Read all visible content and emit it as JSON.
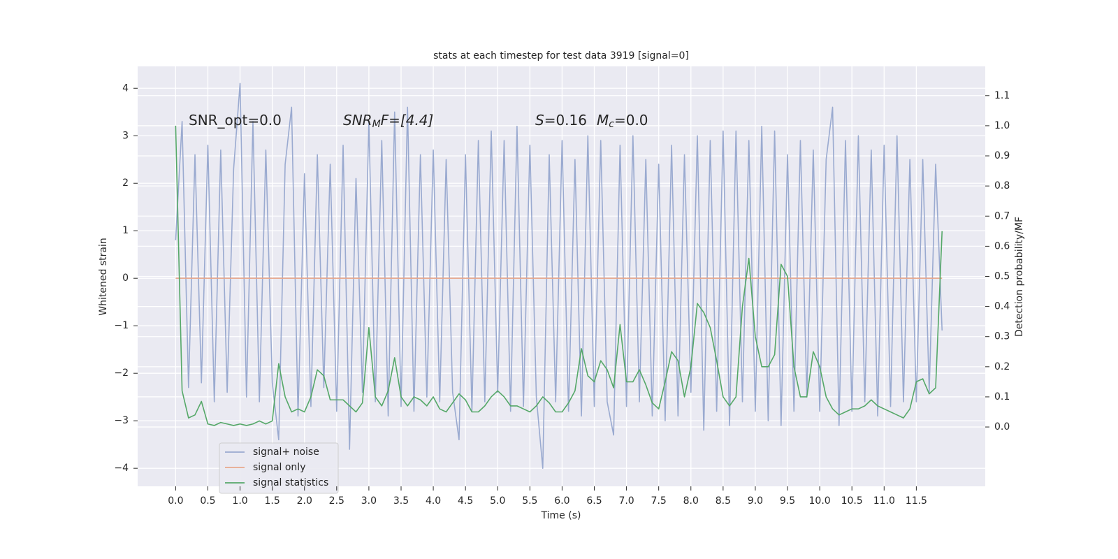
{
  "chart_data": {
    "type": "line",
    "title": "stats at each timestep for test data 3919 [signal=0]",
    "xlabel": "Time (s)",
    "ylabel": "Whitened strain",
    "y2label": "Detection probability/MF",
    "annotations": [
      [
        "SNR_opt=0.0"
      ],
      [
        "SNR",
        "M",
        "F=[4.4]"
      ],
      [
        "S",
        "=0.16",
        "M",
        "c",
        "=0.0"
      ]
    ],
    "x": [
      0.0,
      0.1,
      0.2,
      0.3,
      0.4,
      0.5,
      0.6,
      0.7,
      0.8,
      0.9,
      1.0,
      1.1,
      1.2,
      1.3,
      1.4,
      1.5,
      1.6,
      1.7,
      1.8,
      1.9,
      2.0,
      2.1,
      2.2,
      2.3,
      2.4,
      2.5,
      2.6,
      2.7,
      2.8,
      2.9,
      3.0,
      3.1,
      3.2,
      3.3,
      3.4,
      3.5,
      3.6,
      3.7,
      3.8,
      3.9,
      4.0,
      4.1,
      4.2,
      4.3,
      4.4,
      4.5,
      4.6,
      4.7,
      4.8,
      4.9,
      5.0,
      5.1,
      5.2,
      5.3,
      5.4,
      5.5,
      5.6,
      5.7,
      5.8,
      5.9,
      6.0,
      6.1,
      6.2,
      6.3,
      6.4,
      6.5,
      6.6,
      6.7,
      6.8,
      6.9,
      7.0,
      7.1,
      7.2,
      7.3,
      7.4,
      7.5,
      7.6,
      7.7,
      7.8,
      7.9,
      8.0,
      8.1,
      8.2,
      8.3,
      8.4,
      8.5,
      8.6,
      8.7,
      8.8,
      8.9,
      9.0,
      9.1,
      9.2,
      9.3,
      9.4,
      9.5,
      9.6,
      9.7,
      9.8,
      9.9,
      10.0,
      10.1,
      10.2,
      10.3,
      10.4,
      10.5,
      10.6,
      10.7,
      10.8,
      10.9,
      11.0,
      11.1,
      11.2,
      11.3,
      11.4,
      11.5,
      11.6,
      11.7,
      11.8,
      11.9
    ],
    "series": [
      {
        "name": "signal+ noise",
        "color": "#9aaad0",
        "values": [
          0.8,
          3.3,
          -2.3,
          2.6,
          -2.2,
          2.8,
          -2.6,
          2.7,
          -2.4,
          2.3,
          4.1,
          -2.5,
          3.3,
          -2.6,
          2.7,
          -2.2,
          -3.4,
          2.4,
          3.6,
          -2.9,
          2.2,
          -2.7,
          2.6,
          -2.3,
          2.4,
          -2.8,
          2.8,
          -3.6,
          2.1,
          -2.4,
          3.3,
          -2.6,
          2.9,
          -2.9,
          3.5,
          -2.7,
          3.6,
          -2.8,
          2.6,
          -2.5,
          2.7,
          -2.6,
          2.5,
          -2.4,
          -3.4,
          2.6,
          -2.8,
          2.9,
          -2.6,
          3.1,
          -2.4,
          2.9,
          -2.8,
          3.2,
          -2.7,
          2.8,
          -2.5,
          -4.0,
          2.6,
          -2.6,
          2.9,
          -2.8,
          2.5,
          -2.9,
          3.0,
          -2.7,
          2.9,
          -2.6,
          -3.3,
          2.8,
          -2.7,
          3.0,
          -2.6,
          2.5,
          -2.9,
          2.4,
          -3.0,
          2.8,
          -2.9,
          2.6,
          -2.4,
          3.0,
          -3.2,
          2.9,
          -2.8,
          3.1,
          -3.1,
          3.1,
          -2.6,
          2.9,
          -2.8,
          3.2,
          -3.0,
          3.1,
          -3.1,
          2.6,
          -2.8,
          2.9,
          -2.5,
          2.7,
          -2.8,
          2.5,
          3.6,
          -3.1,
          2.9,
          -2.8,
          3.0,
          -2.6,
          2.7,
          -2.9,
          2.8,
          -2.7,
          3.0,
          -2.6,
          2.5,
          -2.6,
          2.5,
          -2.4,
          2.4,
          -1.1
        ]
      },
      {
        "name": "signal only",
        "color": "#e8a98e",
        "values": [
          0,
          0,
          0,
          0,
          0,
          0,
          0,
          0,
          0,
          0,
          0,
          0,
          0,
          0,
          0,
          0,
          0,
          0,
          0,
          0,
          0,
          0,
          0,
          0,
          0,
          0,
          0,
          0,
          0,
          0,
          0,
          0,
          0,
          0,
          0,
          0,
          0,
          0,
          0,
          0,
          0,
          0,
          0,
          0,
          0,
          0,
          0,
          0,
          0,
          0,
          0,
          0,
          0,
          0,
          0,
          0,
          0,
          0,
          0,
          0,
          0,
          0,
          0,
          0,
          0,
          0,
          0,
          0,
          0,
          0,
          0,
          0,
          0,
          0,
          0,
          0,
          0,
          0,
          0,
          0,
          0,
          0,
          0,
          0,
          0,
          0,
          0,
          0,
          0,
          0,
          0,
          0,
          0,
          0,
          0,
          0,
          0,
          0,
          0,
          0,
          0,
          0,
          0,
          0,
          0,
          0,
          0,
          0,
          0,
          0,
          0,
          0,
          0,
          0,
          0,
          0,
          0,
          0,
          0,
          0
        ]
      },
      {
        "name": "signal statistics",
        "color": "#55a868",
        "axis": "y2",
        "values": [
          1.0,
          0.12,
          0.03,
          0.04,
          0.085,
          0.01,
          0.005,
          0.015,
          0.01,
          0.005,
          0.01,
          0.005,
          0.01,
          0.02,
          0.01,
          0.02,
          0.21,
          0.1,
          0.05,
          0.06,
          0.05,
          0.1,
          0.19,
          0.17,
          0.09,
          0.09,
          0.09,
          0.07,
          0.05,
          0.08,
          0.33,
          0.1,
          0.07,
          0.12,
          0.23,
          0.1,
          0.07,
          0.1,
          0.09,
          0.07,
          0.1,
          0.06,
          0.05,
          0.08,
          0.11,
          0.09,
          0.05,
          0.05,
          0.07,
          0.1,
          0.12,
          0.1,
          0.07,
          0.07,
          0.06,
          0.05,
          0.07,
          0.1,
          0.08,
          0.05,
          0.05,
          0.08,
          0.12,
          0.26,
          0.17,
          0.15,
          0.22,
          0.19,
          0.13,
          0.34,
          0.15,
          0.15,
          0.19,
          0.14,
          0.08,
          0.06,
          0.15,
          0.25,
          0.22,
          0.1,
          0.2,
          0.41,
          0.38,
          0.33,
          0.22,
          0.1,
          0.07,
          0.1,
          0.4,
          0.56,
          0.3,
          0.2,
          0.2,
          0.24,
          0.54,
          0.5,
          0.2,
          0.1,
          0.1,
          0.25,
          0.2,
          0.1,
          0.06,
          0.04,
          0.05,
          0.06,
          0.06,
          0.07,
          0.09,
          0.07,
          0.06,
          0.05,
          0.04,
          0.03,
          0.06,
          0.15,
          0.16,
          0.11,
          0.13,
          0.65
        ]
      }
    ],
    "xlim": [
      -0.59,
      12.57
    ],
    "xticks": [
      {
        "value": 0,
        "label": "0.0"
      },
      0.5,
      {
        "value": 1,
        "label": "1.0"
      },
      1.5,
      {
        "value": 2,
        "label": "2.0"
      },
      2.5,
      {
        "value": 3,
        "label": "3.0"
      },
      3.5,
      {
        "value": 4,
        "label": "4.0"
      },
      4.5,
      {
        "value": 5,
        "label": "5.0"
      },
      5.5,
      {
        "value": 6,
        "label": "6.0"
      },
      6.5,
      {
        "value": 7,
        "label": "7.0"
      },
      7.5,
      {
        "value": 8,
        "label": "8.0"
      },
      8.5,
      {
        "value": 9,
        "label": "9.0"
      },
      9.5,
      {
        "value": 10,
        "label": "10.0"
      },
      10.5,
      {
        "value": 11,
        "label": "11.0"
      },
      11.5
    ],
    "ylim": [
      -4.38,
      4.46
    ],
    "yticks": [
      {
        "value": -4,
        "label": "−4"
      },
      {
        "value": -3,
        "label": "−3"
      },
      {
        "value": -2,
        "label": "−2"
      },
      {
        "value": -1,
        "label": "−1"
      },
      0,
      1,
      2,
      3,
      4
    ],
    "y2lim": [
      -0.197,
      1.197
    ],
    "y2ticks": [
      {
        "value": 0,
        "label": "0.0"
      },
      0.1,
      0.2,
      0.3,
      0.4,
      0.5,
      0.6,
      0.7,
      0.8,
      0.9,
      {
        "value": 1,
        "label": "1.0"
      },
      1.1
    ],
    "grid": true,
    "legend": "lower left"
  }
}
